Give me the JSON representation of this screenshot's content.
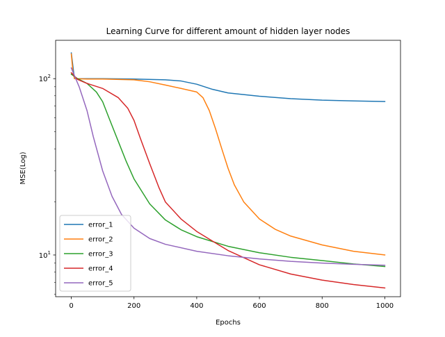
{
  "chart_data": {
    "type": "line",
    "title": "Learning Curve for different amount of hidden layer nodes",
    "xlabel": "Epochs",
    "ylabel": "MSE(Log)",
    "xscale": "linear",
    "yscale": "log",
    "xlim": [
      -50,
      1050
    ],
    "ylim": [
      5.8,
      165
    ],
    "xticks": [
      0,
      200,
      400,
      600,
      800,
      1000
    ],
    "xtick_labels": [
      "0",
      "200",
      "400",
      "600",
      "800",
      "1000"
    ],
    "yticks": [
      10,
      100
    ],
    "ytick_labels": [
      "10¹",
      "10²"
    ],
    "yminor_ticks": [
      6,
      7,
      8,
      9,
      20,
      30,
      40,
      50,
      60,
      70,
      80,
      90
    ],
    "grid": false,
    "legend_position": "lower-left",
    "series": [
      {
        "name": "error_1",
        "color": "#1f77b4",
        "x": [
          0,
          10,
          50,
          100,
          200,
          300,
          350,
          400,
          450,
          500,
          600,
          700,
          800,
          900,
          1000
        ],
        "y": [
          140,
          100,
          100,
          100,
          99.5,
          98.5,
          97,
          93,
          87,
          83,
          79.5,
          77,
          75.5,
          74.8,
          74.2
        ]
      },
      {
        "name": "error_2",
        "color": "#ff7f0e",
        "x": [
          0,
          5,
          10,
          50,
          100,
          200,
          250,
          300,
          350,
          400,
          420,
          440,
          460,
          480,
          500,
          520,
          550,
          600,
          650,
          700,
          800,
          900,
          1000
        ],
        "y": [
          138,
          110,
          100,
          99.5,
          99.5,
          98.5,
          96,
          92,
          88,
          84,
          78,
          66,
          52,
          40,
          31,
          25,
          20,
          16,
          14,
          12.8,
          11.4,
          10.5,
          10.0
        ]
      },
      {
        "name": "error_3",
        "color": "#2ca02c",
        "x": [
          0,
          20,
          50,
          80,
          100,
          120,
          150,
          175,
          200,
          250,
          300,
          350,
          400,
          500,
          600,
          700,
          800,
          900,
          1000
        ],
        "y": [
          106,
          100,
          94,
          84,
          74,
          60,
          44,
          34,
          27,
          19.5,
          15.8,
          13.9,
          12.7,
          11.2,
          10.3,
          9.7,
          9.3,
          8.9,
          8.6
        ]
      },
      {
        "name": "error_4",
        "color": "#d62728",
        "x": [
          0,
          20,
          50,
          100,
          150,
          180,
          200,
          220,
          250,
          280,
          300,
          350,
          400,
          450,
          500,
          600,
          700,
          800,
          900,
          1000
        ],
        "y": [
          108,
          99,
          94,
          88,
          78,
          68,
          58,
          46,
          33,
          24,
          20,
          16,
          13.6,
          12,
          10.6,
          8.8,
          7.8,
          7.2,
          6.8,
          6.5
        ]
      },
      {
        "name": "error_5",
        "color": "#9467bd",
        "x": [
          0,
          10,
          25,
          50,
          70,
          100,
          130,
          160,
          200,
          250,
          300,
          400,
          500,
          600,
          700,
          800,
          900,
          1000
        ],
        "y": [
          115,
          104,
          90,
          66,
          47,
          30,
          21.5,
          17,
          14.2,
          12.4,
          11.5,
          10.5,
          9.9,
          9.5,
          9.2,
          9.0,
          8.85,
          8.75
        ]
      }
    ]
  }
}
